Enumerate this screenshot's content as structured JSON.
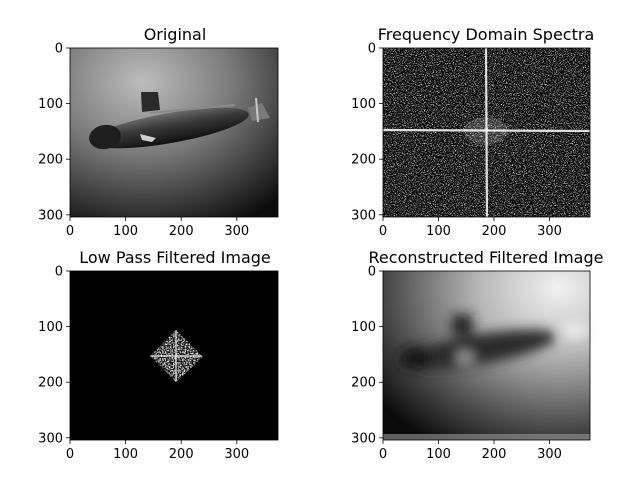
{
  "figure": {
    "panels": [
      {
        "title": "Original",
        "image": "grayscale photo of a submarine underwater",
        "x_ticks": [
          "0",
          "100",
          "200",
          "300"
        ],
        "y_ticks": [
          "0",
          "100",
          "200",
          "300"
        ]
      },
      {
        "title": "Frequency Domain Spectra",
        "image": "log magnitude spectrum: white speckle noise with bright horizontal and vertical cross",
        "x_ticks": [
          "0",
          "100",
          "200",
          "300"
        ],
        "y_ticks": [
          "0",
          "100",
          "200",
          "300"
        ]
      },
      {
        "title": "Low Pass Filtered Image",
        "image": "black field with small diamond-shaped patch of spectrum at center",
        "x_ticks": [
          "0",
          "100",
          "200",
          "300"
        ],
        "y_ticks": [
          "0",
          "100",
          "200",
          "300"
        ]
      },
      {
        "title": "Reconstructed Filtered Image",
        "image": "blurred grayscale submarine",
        "x_ticks": [
          "0",
          "100",
          "200",
          "300"
        ],
        "y_ticks": [
          "0",
          "100",
          "200",
          "300"
        ]
      }
    ],
    "colors": {
      "background": "#ffffff",
      "axis": "#000000"
    }
  }
}
